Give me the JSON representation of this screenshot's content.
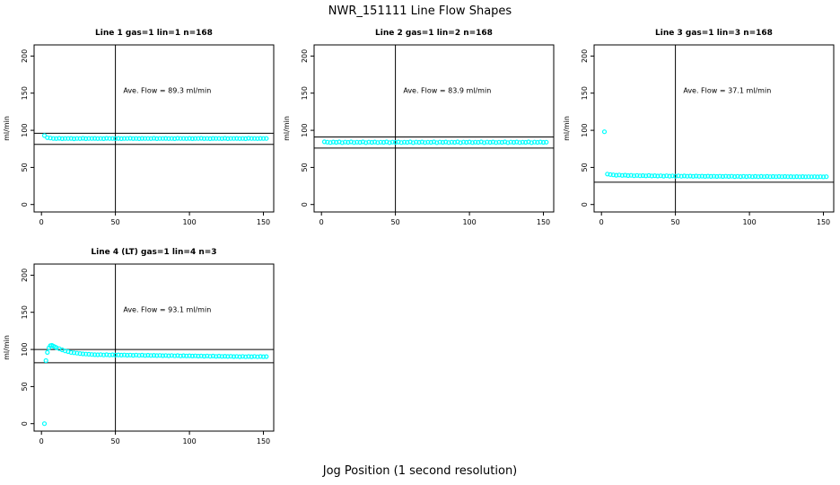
{
  "page": {
    "title": "NWR_151111  Line Flow Shapes",
    "xlabel": "Jog Position (1 second resolution)"
  },
  "chart_data": [
    {
      "type": "scatter",
      "title": "Line 1 gas=1 lin=1 n=168",
      "annotation": "Ave. Flow =  89.3  ml/min",
      "ave_flow": 89.3,
      "ylabel": "ml/min",
      "xlim": [
        -5,
        157
      ],
      "ylim": [
        -10,
        215
      ],
      "xticks": [
        0,
        50,
        100,
        150
      ],
      "yticks": [
        0,
        50,
        100,
        150,
        200
      ],
      "vline_x": 50,
      "hlines": [
        96,
        81
      ],
      "point_color": "#00FFFF",
      "points": [
        [
          2,
          93
        ],
        [
          4,
          90
        ],
        [
          6,
          89.5
        ],
        [
          8,
          89
        ],
        [
          10,
          88.8
        ],
        [
          12,
          89.2
        ],
        [
          14,
          88.7
        ],
        [
          16,
          89
        ],
        [
          18,
          88.9
        ],
        [
          20,
          89.1
        ],
        [
          22,
          88.6
        ],
        [
          24,
          89
        ],
        [
          26,
          88.8
        ],
        [
          28,
          89.2
        ],
        [
          30,
          88.7
        ],
        [
          32,
          89
        ],
        [
          34,
          88.9
        ],
        [
          36,
          89.1
        ],
        [
          38,
          88.8
        ],
        [
          40,
          89
        ],
        [
          42,
          88.7
        ],
        [
          44,
          89.2
        ],
        [
          46,
          88.9
        ],
        [
          48,
          89
        ],
        [
          50,
          88.8
        ],
        [
          52,
          89.1
        ],
        [
          54,
          88.7
        ],
        [
          56,
          89
        ],
        [
          58,
          88.9
        ],
        [
          60,
          89.2
        ],
        [
          62,
          88.8
        ],
        [
          64,
          89
        ],
        [
          66,
          88.7
        ],
        [
          68,
          89.1
        ],
        [
          70,
          88.9
        ],
        [
          72,
          89
        ],
        [
          74,
          88.8
        ],
        [
          76,
          89.2
        ],
        [
          78,
          88.7
        ],
        [
          80,
          89
        ],
        [
          82,
          88.9
        ],
        [
          84,
          89.1
        ],
        [
          86,
          88.8
        ],
        [
          88,
          89
        ],
        [
          90,
          88.7
        ],
        [
          92,
          89.2
        ],
        [
          94,
          88.9
        ],
        [
          96,
          89
        ],
        [
          98,
          88.8
        ],
        [
          100,
          89.1
        ],
        [
          102,
          88.7
        ],
        [
          104,
          89
        ],
        [
          106,
          88.9
        ],
        [
          108,
          89.2
        ],
        [
          110,
          88.8
        ],
        [
          112,
          89
        ],
        [
          114,
          88.7
        ],
        [
          116,
          89.1
        ],
        [
          118,
          88.9
        ],
        [
          120,
          89
        ],
        [
          122,
          88.8
        ],
        [
          124,
          89.2
        ],
        [
          126,
          88.7
        ],
        [
          128,
          89
        ],
        [
          130,
          88.9
        ],
        [
          132,
          89.1
        ],
        [
          134,
          88.8
        ],
        [
          136,
          89
        ],
        [
          138,
          88.7
        ],
        [
          140,
          89.2
        ],
        [
          142,
          88.9
        ],
        [
          144,
          89
        ],
        [
          146,
          88.8
        ],
        [
          148,
          89.1
        ],
        [
          150,
          88.9
        ],
        [
          152,
          89
        ]
      ]
    },
    {
      "type": "scatter",
      "title": "Line 2 gas=1 lin=2 n=168",
      "annotation": "Ave. Flow =  83.9  ml/min",
      "ave_flow": 83.9,
      "ylabel": "ml/min",
      "xlim": [
        -5,
        157
      ],
      "ylim": [
        -10,
        215
      ],
      "xticks": [
        0,
        50,
        100,
        150
      ],
      "yticks": [
        0,
        50,
        100,
        150,
        200
      ],
      "vline_x": 50,
      "hlines": [
        91,
        76
      ],
      "point_color": "#00FFFF",
      "points": [
        [
          2,
          84.5
        ],
        [
          4,
          84
        ],
        [
          6,
          83.5
        ],
        [
          8,
          84.2
        ],
        [
          10,
          83.8
        ],
        [
          12,
          84.4
        ],
        [
          14,
          83.4
        ],
        [
          16,
          84.1
        ],
        [
          18,
          83.7
        ],
        [
          20,
          84.3
        ],
        [
          22,
          83.5
        ],
        [
          24,
          84
        ],
        [
          26,
          83.8
        ],
        [
          28,
          84.4
        ],
        [
          30,
          83.4
        ],
        [
          32,
          84.1
        ],
        [
          34,
          83.7
        ],
        [
          36,
          84.2
        ],
        [
          38,
          83.5
        ],
        [
          40,
          84
        ],
        [
          42,
          83.8
        ],
        [
          44,
          84.3
        ],
        [
          46,
          83.4
        ],
        [
          48,
          84.1
        ],
        [
          50,
          83.7
        ],
        [
          52,
          84.2
        ],
        [
          54,
          83.5
        ],
        [
          56,
          84
        ],
        [
          58,
          83.8
        ],
        [
          60,
          84.4
        ],
        [
          62,
          83.4
        ],
        [
          64,
          84.1
        ],
        [
          66,
          83.7
        ],
        [
          68,
          84.2
        ],
        [
          70,
          83.5
        ],
        [
          72,
          84
        ],
        [
          74,
          83.8
        ],
        [
          76,
          84.3
        ],
        [
          78,
          83.4
        ],
        [
          80,
          84.1
        ],
        [
          82,
          83.7
        ],
        [
          84,
          84.2
        ],
        [
          86,
          83.5
        ],
        [
          88,
          84
        ],
        [
          90,
          83.8
        ],
        [
          92,
          84.4
        ],
        [
          94,
          83.4
        ],
        [
          96,
          84.1
        ],
        [
          98,
          83.7
        ],
        [
          100,
          84.2
        ],
        [
          102,
          83.5
        ],
        [
          104,
          84
        ],
        [
          106,
          83.8
        ],
        [
          108,
          84.3
        ],
        [
          110,
          83.4
        ],
        [
          112,
          84.1
        ],
        [
          114,
          83.7
        ],
        [
          116,
          84.2
        ],
        [
          118,
          83.5
        ],
        [
          120,
          84
        ],
        [
          122,
          83.8
        ],
        [
          124,
          84.4
        ],
        [
          126,
          83.4
        ],
        [
          128,
          84.1
        ],
        [
          130,
          83.7
        ],
        [
          132,
          84.2
        ],
        [
          134,
          83.5
        ],
        [
          136,
          84
        ],
        [
          138,
          83.8
        ],
        [
          140,
          84.3
        ],
        [
          142,
          83.4
        ],
        [
          144,
          84.1
        ],
        [
          146,
          83.7
        ],
        [
          148,
          84.2
        ],
        [
          150,
          83.8
        ],
        [
          152,
          84
        ]
      ]
    },
    {
      "type": "scatter",
      "title": "Line 3 gas=1 lin=3 n=168",
      "annotation": "Ave. Flow =  37.1  ml/min",
      "ave_flow": 37.1,
      "ylabel": "ml/min",
      "xlim": [
        -5,
        157
      ],
      "ylim": [
        -10,
        215
      ],
      "xticks": [
        0,
        50,
        100,
        150
      ],
      "yticks": [
        0,
        50,
        100,
        150,
        200
      ],
      "vline_x": 50,
      "hlines": [
        30
      ],
      "point_color": "#00FFFF",
      "points": [
        [
          2,
          98
        ],
        [
          4,
          41
        ],
        [
          6,
          40.5
        ],
        [
          8,
          40
        ],
        [
          10,
          39.5
        ],
        [
          12,
          39.8
        ],
        [
          14,
          39.2
        ],
        [
          16,
          39.6
        ],
        [
          18,
          39
        ],
        [
          20,
          39.4
        ],
        [
          22,
          38.8
        ],
        [
          24,
          39.2
        ],
        [
          26,
          38.7
        ],
        [
          28,
          39
        ],
        [
          30,
          38.6
        ],
        [
          32,
          39.1
        ],
        [
          34,
          38.5
        ],
        [
          36,
          38.9
        ],
        [
          38,
          38.4
        ],
        [
          40,
          38.8
        ],
        [
          42,
          38.3
        ],
        [
          44,
          38.7
        ],
        [
          46,
          38.3
        ],
        [
          48,
          38.6
        ],
        [
          50,
          38.2
        ],
        [
          52,
          38.6
        ],
        [
          54,
          38.1
        ],
        [
          56,
          38.5
        ],
        [
          58,
          38.1
        ],
        [
          60,
          38.4
        ],
        [
          62,
          38
        ],
        [
          64,
          38.4
        ],
        [
          66,
          38
        ],
        [
          68,
          38.3
        ],
        [
          70,
          37.9
        ],
        [
          72,
          38.3
        ],
        [
          74,
          37.9
        ],
        [
          76,
          38.2
        ],
        [
          78,
          37.8
        ],
        [
          80,
          38.2
        ],
        [
          82,
          37.8
        ],
        [
          84,
          38.1
        ],
        [
          86,
          37.8
        ],
        [
          88,
          38.1
        ],
        [
          90,
          37.7
        ],
        [
          92,
          38
        ],
        [
          94,
          37.7
        ],
        [
          96,
          38
        ],
        [
          98,
          37.7
        ],
        [
          100,
          38
        ],
        [
          102,
          37.6
        ],
        [
          104,
          37.9
        ],
        [
          106,
          37.6
        ],
        [
          108,
          37.9
        ],
        [
          110,
          37.6
        ],
        [
          112,
          37.9
        ],
        [
          114,
          37.5
        ],
        [
          116,
          37.8
        ],
        [
          118,
          37.5
        ],
        [
          120,
          37.8
        ],
        [
          122,
          37.5
        ],
        [
          124,
          37.8
        ],
        [
          126,
          37.5
        ],
        [
          128,
          37.7
        ],
        [
          130,
          37.4
        ],
        [
          132,
          37.7
        ],
        [
          134,
          37.4
        ],
        [
          136,
          37.7
        ],
        [
          138,
          37.4
        ],
        [
          140,
          37.6
        ],
        [
          142,
          37.4
        ],
        [
          144,
          37.6
        ],
        [
          146,
          37.3
        ],
        [
          148,
          37.6
        ],
        [
          150,
          37.3
        ],
        [
          152,
          37.5
        ]
      ]
    },
    {
      "type": "scatter",
      "title": "Line 4 (LT) gas=1 lin=4 n=3",
      "annotation": "Ave. Flow =  93.1  ml/min",
      "ave_flow": 93.1,
      "ylabel": "ml/min",
      "xlim": [
        -5,
        157
      ],
      "ylim": [
        -10,
        215
      ],
      "xticks": [
        0,
        50,
        100,
        150
      ],
      "yticks": [
        0,
        50,
        100,
        150,
        200
      ],
      "vline_x": 50,
      "hlines": [
        100,
        82
      ],
      "point_color": "#00FFFF",
      "points": [
        [
          2,
          0
        ],
        [
          3,
          85
        ],
        [
          4,
          96
        ],
        [
          5,
          102
        ],
        [
          6,
          105
        ],
        [
          7,
          105.5
        ],
        [
          8,
          104.5
        ],
        [
          9,
          103.5
        ],
        [
          10,
          102.5
        ],
        [
          12,
          101
        ],
        [
          14,
          99.5
        ],
        [
          16,
          98
        ],
        [
          18,
          97
        ],
        [
          20,
          96
        ],
        [
          22,
          95.5
        ],
        [
          24,
          95
        ],
        [
          26,
          94.5
        ],
        [
          28,
          94
        ],
        [
          30,
          93.8
        ],
        [
          32,
          93.5
        ],
        [
          34,
          93.2
        ],
        [
          36,
          93
        ],
        [
          38,
          92.8
        ],
        [
          40,
          93.1
        ],
        [
          42,
          92.6
        ],
        [
          44,
          92.9
        ],
        [
          46,
          92.5
        ],
        [
          48,
          92.8
        ],
        [
          50,
          92.4
        ],
        [
          52,
          92.7
        ],
        [
          54,
          92.3
        ],
        [
          56,
          92.6
        ],
        [
          58,
          92.2
        ],
        [
          60,
          92.5
        ],
        [
          62,
          92.1
        ],
        [
          64,
          92.4
        ],
        [
          66,
          92
        ],
        [
          68,
          92.3
        ],
        [
          70,
          91.9
        ],
        [
          72,
          92.2
        ],
        [
          74,
          91.8
        ],
        [
          76,
          92.1
        ],
        [
          78,
          91.7
        ],
        [
          80,
          92
        ],
        [
          82,
          91.6
        ],
        [
          84,
          91.9
        ],
        [
          86,
          91.5
        ],
        [
          88,
          91.8
        ],
        [
          90,
          91.4
        ],
        [
          92,
          91.7
        ],
        [
          94,
          91.3
        ],
        [
          96,
          91.6
        ],
        [
          98,
          91.2
        ],
        [
          100,
          91.5
        ],
        [
          102,
          91.1
        ],
        [
          104,
          91.4
        ],
        [
          106,
          91
        ],
        [
          108,
          91.3
        ],
        [
          110,
          90.9
        ],
        [
          112,
          91.2
        ],
        [
          114,
          90.8
        ],
        [
          116,
          91.1
        ],
        [
          118,
          90.7
        ],
        [
          120,
          91
        ],
        [
          122,
          90.6
        ],
        [
          124,
          90.9
        ],
        [
          126,
          90.5
        ],
        [
          128,
          90.8
        ],
        [
          130,
          90.4
        ],
        [
          132,
          90.7
        ],
        [
          134,
          90.3
        ],
        [
          136,
          90.6
        ],
        [
          138,
          90.2
        ],
        [
          140,
          90.5
        ],
        [
          142,
          90.3
        ],
        [
          144,
          90.6
        ],
        [
          146,
          90.2
        ],
        [
          148,
          90.5
        ],
        [
          150,
          90.3
        ],
        [
          152,
          90.4
        ]
      ]
    }
  ]
}
